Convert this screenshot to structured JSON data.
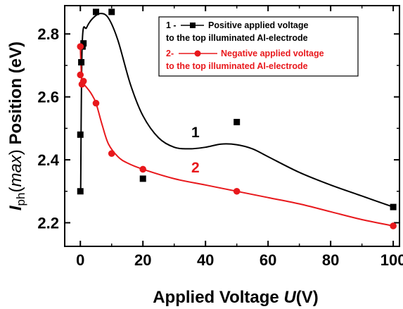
{
  "chart_data": {
    "type": "scatter",
    "xlabel": {
      "prefix": "Applied Voltage ",
      "italic": "U",
      "suffix": "(V)"
    },
    "ylabel": {
      "main": "I",
      "sub": "ph",
      "paren_open": "(",
      "italic": "max",
      "paren_close": ")",
      "suffix": " Position (eV)"
    },
    "xlim": [
      -5,
      102
    ],
    "ylim": [
      2.125,
      2.89
    ],
    "xticks": [
      0,
      20,
      40,
      60,
      80,
      100
    ],
    "yticks": [
      2.2,
      2.4,
      2.6,
      2.8
    ],
    "xtick_labels": [
      "0",
      "20",
      "40",
      "60",
      "80",
      "100"
    ],
    "ytick_labels": [
      "2.2",
      "2.4",
      "2.6",
      "2.8"
    ],
    "grid": false,
    "legend_position": "top-right",
    "series": [
      {
        "name": "1 - Positive applied voltage to the top illuminated Al-electrode",
        "legend_lines": [
          "1 -",
          "Positive applied voltage",
          "to the top illuminated Al-electrode"
        ],
        "color": "#000000",
        "marker": "square",
        "curve_label": "1",
        "points": [
          {
            "x": 0,
            "y": 2.3
          },
          {
            "x": 0,
            "y": 2.48
          },
          {
            "x": 0.3,
            "y": 2.71
          },
          {
            "x": 0.7,
            "y": 2.76
          },
          {
            "x": 1,
            "y": 2.77
          },
          {
            "x": 5,
            "y": 2.87
          },
          {
            "x": 10,
            "y": 2.87
          },
          {
            "x": 20,
            "y": 2.34
          },
          {
            "x": 50,
            "y": 2.52
          },
          {
            "x": 100,
            "y": 2.25
          }
        ],
        "fit_curve": [
          {
            "x": 0.1,
            "y": 2.3
          },
          {
            "x": 0.6,
            "y": 2.77
          },
          {
            "x": 2,
            "y": 2.82
          },
          {
            "x": 4,
            "y": 2.85
          },
          {
            "x": 6.5,
            "y": 2.865
          },
          {
            "x": 9,
            "y": 2.85
          },
          {
            "x": 12,
            "y": 2.78
          },
          {
            "x": 16,
            "y": 2.64
          },
          {
            "x": 20,
            "y": 2.54
          },
          {
            "x": 25,
            "y": 2.47
          },
          {
            "x": 30,
            "y": 2.44
          },
          {
            "x": 35,
            "y": 2.435
          },
          {
            "x": 40,
            "y": 2.44
          },
          {
            "x": 45,
            "y": 2.45
          },
          {
            "x": 50,
            "y": 2.448
          },
          {
            "x": 55,
            "y": 2.435
          },
          {
            "x": 60,
            "y": 2.41
          },
          {
            "x": 70,
            "y": 2.36
          },
          {
            "x": 80,
            "y": 2.32
          },
          {
            "x": 90,
            "y": 2.285
          },
          {
            "x": 100,
            "y": 2.25
          }
        ]
      },
      {
        "name": "2- Negative applied voltage to the top illuminated Al-electrode",
        "legend_lines": [
          "2-",
          "Negative applied voltage",
          "to the top illuminated Al-electrode"
        ],
        "color": "#e8181c",
        "marker": "circle",
        "curve_label": "2",
        "points": [
          {
            "x": 0,
            "y": 2.76
          },
          {
            "x": 0,
            "y": 2.67
          },
          {
            "x": 0.5,
            "y": 2.64
          },
          {
            "x": 1,
            "y": 2.65
          },
          {
            "x": 5,
            "y": 2.58
          },
          {
            "x": 10,
            "y": 2.42
          },
          {
            "x": 20,
            "y": 2.37
          },
          {
            "x": 50,
            "y": 2.3
          },
          {
            "x": 100,
            "y": 2.19
          }
        ],
        "fit_curve": [
          {
            "x": 0,
            "y": 2.76
          },
          {
            "x": 0.2,
            "y": 2.7
          },
          {
            "x": 0.5,
            "y": 2.64
          },
          {
            "x": 1,
            "y": 2.64
          },
          {
            "x": 2,
            "y": 2.63
          },
          {
            "x": 3.5,
            "y": 2.61
          },
          {
            "x": 5,
            "y": 2.58
          },
          {
            "x": 7,
            "y": 2.51
          },
          {
            "x": 9,
            "y": 2.45
          },
          {
            "x": 12,
            "y": 2.41
          },
          {
            "x": 15,
            "y": 2.39
          },
          {
            "x": 20,
            "y": 2.37
          },
          {
            "x": 30,
            "y": 2.34
          },
          {
            "x": 40,
            "y": 2.32
          },
          {
            "x": 50,
            "y": 2.3
          },
          {
            "x": 60,
            "y": 2.28
          },
          {
            "x": 70,
            "y": 2.26
          },
          {
            "x": 80,
            "y": 2.235
          },
          {
            "x": 90,
            "y": 2.21
          },
          {
            "x": 100,
            "y": 2.19
          }
        ]
      }
    ]
  }
}
